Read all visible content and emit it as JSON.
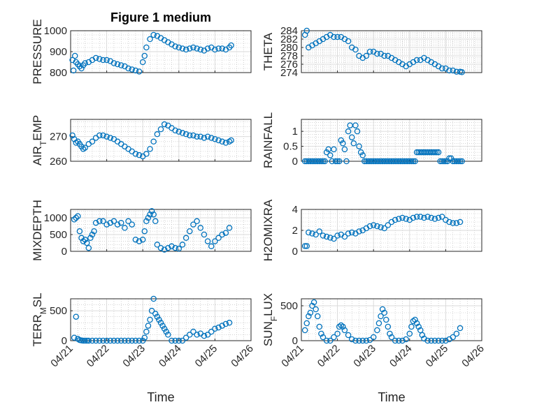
{
  "figure": {
    "background": "#ffffff",
    "marker_color": "#0072BD",
    "axis_color": "#262626",
    "grid_color": "#b8b8b8"
  },
  "chart_data": [
    {
      "id": "pressure",
      "type": "scatter",
      "title": "Figure 1 medium",
      "ylabel": "PRESSURE",
      "ylabel_sub": null,
      "xlabel": "",
      "xlim": [
        0,
        5
      ],
      "ylim": [
        800,
        1000
      ],
      "yticks": [
        800,
        900,
        1000
      ],
      "ytick_labels": [
        "800",
        "900",
        "1000"
      ],
      "xticks": [
        0,
        1,
        2,
        3,
        4,
        5
      ],
      "xtick_labels": [],
      "grid": "major+minor",
      "x": [
        0.05,
        0.08,
        0.12,
        0.15,
        0.2,
        0.25,
        0.3,
        0.35,
        0.4,
        0.5,
        0.6,
        0.7,
        0.8,
        0.9,
        1.0,
        1.1,
        1.2,
        1.3,
        1.4,
        1.5,
        1.6,
        1.7,
        1.8,
        1.9,
        2.0,
        2.05,
        2.1,
        2.2,
        2.3,
        2.4,
        2.5,
        2.6,
        2.7,
        2.8,
        2.9,
        3.0,
        3.1,
        3.2,
        3.3,
        3.4,
        3.5,
        3.6,
        3.7,
        3.8,
        3.9,
        4.0,
        4.1,
        4.2,
        4.3,
        4.4,
        4.45
      ],
      "y": [
        860,
        810,
        880,
        850,
        840,
        830,
        820,
        835,
        845,
        850,
        860,
        870,
        865,
        860,
        860,
        855,
        845,
        840,
        835,
        830,
        820,
        815,
        810,
        805,
        850,
        880,
        920,
        960,
        980,
        975,
        965,
        955,
        945,
        935,
        925,
        920,
        915,
        910,
        915,
        920,
        915,
        910,
        905,
        915,
        920,
        910,
        915,
        915,
        910,
        920,
        930
      ]
    },
    {
      "id": "theta",
      "type": "scatter",
      "title": "",
      "ylabel": "THETA",
      "ylabel_sub": null,
      "xlabel": "",
      "xlim": [
        0,
        5
      ],
      "ylim": [
        274,
        284
      ],
      "yticks": [
        274,
        276,
        278,
        280,
        282,
        284
      ],
      "ytick_labels": [
        "274",
        "276",
        "278",
        "280",
        "282",
        "284"
      ],
      "xticks": [
        0,
        1,
        2,
        3,
        4,
        5
      ],
      "xtick_labels": [],
      "grid": "major+minor",
      "x": [
        0.1,
        0.15,
        0.2,
        0.3,
        0.4,
        0.5,
        0.6,
        0.7,
        0.8,
        0.9,
        1.0,
        1.1,
        1.2,
        1.3,
        1.4,
        1.5,
        1.6,
        1.7,
        1.8,
        1.9,
        2.0,
        2.1,
        2.2,
        2.3,
        2.4,
        2.5,
        2.6,
        2.7,
        2.8,
        2.9,
        3.0,
        3.1,
        3.2,
        3.3,
        3.4,
        3.5,
        3.6,
        3.7,
        3.8,
        3.9,
        4.0,
        4.1,
        4.2,
        4.3,
        4.4,
        4.45
      ],
      "y": [
        283,
        284,
        280,
        280.5,
        281,
        281.5,
        282,
        282.5,
        283,
        282.5,
        282.5,
        282.5,
        282,
        281.5,
        280,
        279.5,
        278,
        277.5,
        278,
        279,
        279,
        278.5,
        278.5,
        278,
        278,
        277.5,
        277,
        276.5,
        276,
        275.5,
        276,
        276.5,
        277,
        277,
        277.5,
        277,
        276.5,
        276,
        275.5,
        275,
        275,
        274.5,
        274.5,
        274.2,
        274.2,
        274.1
      ]
    },
    {
      "id": "air-temp",
      "type": "scatter",
      "title": "",
      "ylabel": "AIR",
      "ylabel_sub": "T",
      "ylabel_rest": "EMP",
      "xlabel": "",
      "xlim": [
        0,
        5
      ],
      "ylim": [
        260,
        277
      ],
      "yticks": [
        260,
        270
      ],
      "ytick_labels": [
        "260",
        "270"
      ],
      "xticks": [
        0,
        1,
        2,
        3,
        4,
        5
      ],
      "xtick_labels": [],
      "grid": "major+minor",
      "x": [
        0.05,
        0.1,
        0.15,
        0.2,
        0.25,
        0.3,
        0.35,
        0.4,
        0.5,
        0.6,
        0.7,
        0.8,
        0.9,
        1.0,
        1.1,
        1.2,
        1.3,
        1.4,
        1.5,
        1.6,
        1.7,
        1.8,
        1.9,
        2.0,
        2.1,
        2.2,
        2.3,
        2.4,
        2.5,
        2.6,
        2.7,
        2.8,
        2.9,
        3.0,
        3.1,
        3.2,
        3.3,
        3.4,
        3.5,
        3.6,
        3.7,
        3.8,
        3.9,
        4.0,
        4.1,
        4.2,
        4.3,
        4.4,
        4.45
      ],
      "y": [
        270.5,
        269,
        267.5,
        268,
        267,
        266,
        265,
        265.5,
        267,
        268,
        269.5,
        270.5,
        270.5,
        270,
        269.5,
        269,
        268,
        267,
        266,
        265,
        264,
        263,
        262.5,
        262,
        263,
        265,
        268,
        271,
        273,
        275,
        274.5,
        273.5,
        272.5,
        272,
        271.5,
        271,
        270.5,
        270.5,
        270,
        270,
        269.5,
        270,
        269.5,
        269,
        268.5,
        268,
        267.5,
        268,
        268.5
      ]
    },
    {
      "id": "rainfall",
      "type": "scatter",
      "title": "",
      "ylabel": "RAINFALL",
      "ylabel_sub": null,
      "xlabel": "",
      "xlim": [
        0,
        5
      ],
      "ylim": [
        0,
        1.4
      ],
      "yticks": [
        0,
        0.5,
        1
      ],
      "ytick_labels": [
        "0",
        "0.5",
        "1"
      ],
      "xticks": [
        0,
        1,
        2,
        3,
        4,
        5
      ],
      "xtick_labels": [],
      "grid": "major+minor",
      "x": [
        0.1,
        0.15,
        0.2,
        0.25,
        0.3,
        0.35,
        0.4,
        0.45,
        0.5,
        0.55,
        0.6,
        0.65,
        0.7,
        0.75,
        0.8,
        0.85,
        0.9,
        0.95,
        1.0,
        1.05,
        1.1,
        1.15,
        1.2,
        1.25,
        1.3,
        1.35,
        1.4,
        1.45,
        1.5,
        1.55,
        1.6,
        1.65,
        1.7,
        1.75,
        1.8,
        1.85,
        1.9,
        1.95,
        2.0,
        2.05,
        2.1,
        2.15,
        2.2,
        2.25,
        2.3,
        2.35,
        2.4,
        2.45,
        2.5,
        2.55,
        2.6,
        2.65,
        2.7,
        2.75,
        2.8,
        2.85,
        2.9,
        2.95,
        3.0,
        3.05,
        3.1,
        3.15,
        3.2,
        3.25,
        3.3,
        3.35,
        3.4,
        3.45,
        3.5,
        3.55,
        3.6,
        3.65,
        3.7,
        3.75,
        3.8,
        3.85,
        3.9,
        3.95,
        4.0,
        4.05,
        4.1,
        4.15,
        4.2,
        4.25,
        4.3,
        4.35,
        4.4,
        4.45
      ],
      "y": [
        0,
        0,
        0,
        0,
        0,
        0,
        0,
        0,
        0,
        0,
        0,
        0,
        0.3,
        0.4,
        0.2,
        0,
        0.4,
        0,
        0,
        0,
        0.7,
        0.6,
        0.4,
        0,
        1.0,
        1.2,
        0.8,
        0.6,
        1.2,
        1.0,
        0.5,
        0.3,
        0.2,
        0,
        0,
        0,
        0,
        0,
        0,
        0,
        0,
        0,
        0,
        0,
        0,
        0,
        0,
        0,
        0,
        0,
        0,
        0,
        0,
        0,
        0,
        0,
        0,
        0,
        0,
        0,
        0,
        0,
        0.3,
        0.3,
        0.3,
        0.3,
        0.3,
        0.3,
        0.3,
        0.3,
        0.3,
        0.3,
        0.3,
        0.3,
        0.3,
        0,
        0,
        0,
        0,
        0,
        0.1,
        0.1,
        0,
        0,
        0,
        0,
        0,
        0
      ]
    },
    {
      "id": "mixdepth",
      "type": "scatter",
      "title": "",
      "ylabel": "MIXDEPTH",
      "ylabel_sub": null,
      "xlabel": "",
      "xlim": [
        0,
        5
      ],
      "ylim": [
        0,
        1250
      ],
      "yticks": [
        0,
        500,
        1000
      ],
      "ytick_labels": [
        "0",
        "500",
        "1000"
      ],
      "xticks": [
        0,
        1,
        2,
        3,
        4,
        5
      ],
      "xtick_labels": [],
      "grid": "major+minor",
      "x": [
        0.1,
        0.15,
        0.2,
        0.25,
        0.3,
        0.35,
        0.4,
        0.45,
        0.5,
        0.55,
        0.6,
        0.65,
        0.7,
        0.8,
        0.9,
        1.0,
        1.1,
        1.2,
        1.3,
        1.4,
        1.5,
        1.6,
        1.7,
        1.8,
        1.9,
        2.0,
        2.05,
        2.1,
        2.15,
        2.2,
        2.25,
        2.3,
        2.35,
        2.4,
        2.5,
        2.6,
        2.7,
        2.8,
        2.9,
        3.0,
        3.1,
        3.2,
        3.3,
        3.4,
        3.5,
        3.6,
        3.7,
        3.8,
        3.9,
        4.0,
        4.1,
        4.2,
        4.3,
        4.4
      ],
      "y": [
        950,
        1000,
        1050,
        600,
        400,
        300,
        350,
        250,
        100,
        400,
        500,
        600,
        850,
        900,
        900,
        800,
        850,
        900,
        800,
        850,
        700,
        900,
        800,
        350,
        300,
        350,
        600,
        900,
        1000,
        1100,
        1200,
        1100,
        900,
        200,
        100,
        50,
        100,
        150,
        100,
        80,
        200,
        400,
        600,
        800,
        900,
        700,
        500,
        300,
        150,
        300,
        400,
        500,
        550,
        700
      ]
    },
    {
      "id": "h2omixra",
      "type": "scatter",
      "title": "",
      "ylabel": "H2OMIXRA",
      "ylabel_sub": null,
      "xlabel": "",
      "xlim": [
        0,
        5
      ],
      "ylim": [
        0,
        4
      ],
      "yticks": [
        0,
        2,
        4
      ],
      "ytick_labels": [
        "0",
        "2",
        "4"
      ],
      "xticks": [
        0,
        1,
        2,
        3,
        4,
        5
      ],
      "xtick_labels": [],
      "grid": "major+minor",
      "x": [
        0.1,
        0.15,
        0.2,
        0.3,
        0.4,
        0.5,
        0.6,
        0.7,
        0.8,
        0.9,
        1.0,
        1.1,
        1.2,
        1.3,
        1.4,
        1.5,
        1.6,
        1.7,
        1.8,
        1.9,
        2.0,
        2.1,
        2.2,
        2.3,
        2.4,
        2.5,
        2.6,
        2.7,
        2.8,
        2.9,
        3.0,
        3.1,
        3.2,
        3.3,
        3.4,
        3.5,
        3.6,
        3.7,
        3.8,
        3.9,
        4.0,
        4.1,
        4.2,
        4.3,
        4.4
      ],
      "y": [
        0.5,
        0.5,
        1.8,
        1.7,
        1.6,
        1.9,
        1.5,
        1.4,
        1.3,
        1.2,
        1.5,
        1.6,
        1.4,
        1.7,
        1.8,
        1.7,
        1.9,
        2.0,
        2.2,
        2.4,
        2.5,
        2.4,
        2.3,
        2.2,
        2.5,
        2.8,
        3.0,
        3.1,
        3.2,
        3.1,
        3.0,
        3.2,
        3.3,
        3.3,
        3.2,
        3.3,
        3.2,
        3.1,
        3.2,
        3.3,
        3.0,
        2.8,
        2.7,
        2.7,
        2.8
      ]
    },
    {
      "id": "terr-msl",
      "type": "scatter",
      "title": "",
      "ylabel": "TERR",
      "ylabel_sub": "M",
      "ylabel_rest": "SL",
      "xlabel": "Time",
      "xlim": [
        0,
        5
      ],
      "ylim": [
        0,
        700
      ],
      "yticks": [
        0,
        500
      ],
      "ytick_labels": [
        "0",
        "500"
      ],
      "xticks": [
        0,
        1,
        2,
        3,
        4,
        5
      ],
      "xtick_labels": [
        "04/21",
        "04/22",
        "04/23",
        "04/24",
        "04/25",
        "04/26"
      ],
      "grid": "major+minor",
      "x": [
        0.1,
        0.15,
        0.2,
        0.25,
        0.3,
        0.35,
        0.4,
        0.45,
        0.5,
        0.6,
        0.7,
        0.8,
        0.9,
        1.0,
        1.1,
        1.2,
        1.3,
        1.4,
        1.5,
        1.6,
        1.7,
        1.8,
        1.9,
        2.0,
        2.05,
        2.1,
        2.15,
        2.2,
        2.25,
        2.3,
        2.35,
        2.4,
        2.45,
        2.5,
        2.55,
        2.6,
        2.65,
        2.7,
        2.8,
        2.9,
        3.0,
        3.1,
        3.2,
        3.3,
        3.4,
        3.5,
        3.6,
        3.7,
        3.8,
        3.9,
        4.0,
        4.1,
        4.2,
        4.3,
        4.4
      ],
      "y": [
        50,
        400,
        30,
        10,
        5,
        0,
        0,
        0,
        0,
        0,
        0,
        0,
        0,
        0,
        0,
        0,
        0,
        0,
        0,
        0,
        0,
        0,
        0,
        0,
        50,
        150,
        250,
        350,
        500,
        700,
        450,
        400,
        350,
        300,
        250,
        200,
        150,
        100,
        0,
        0,
        0,
        0,
        50,
        100,
        150,
        100,
        120,
        80,
        100,
        150,
        200,
        220,
        250,
        280,
        300
      ]
    },
    {
      "id": "sun-flux",
      "type": "scatter",
      "title": "",
      "ylabel": "SUN",
      "ylabel_sub": "F",
      "ylabel_rest": "LUX",
      "xlabel": "Time",
      "xlim": [
        0,
        5
      ],
      "ylim": [
        0,
        600
      ],
      "yticks": [
        0,
        500
      ],
      "ytick_labels": [
        "0",
        "500"
      ],
      "xticks": [
        0,
        1,
        2,
        3,
        4,
        5
      ],
      "xtick_labels": [
        "04/21",
        "04/22",
        "04/23",
        "04/24",
        "04/25",
        "04/26"
      ],
      "grid": "major+minor",
      "x": [
        0.1,
        0.15,
        0.2,
        0.25,
        0.3,
        0.35,
        0.4,
        0.45,
        0.5,
        0.55,
        0.6,
        0.7,
        0.8,
        0.9,
        1.0,
        1.05,
        1.1,
        1.15,
        1.2,
        1.3,
        1.4,
        1.5,
        1.6,
        1.7,
        1.8,
        1.9,
        2.0,
        2.1,
        2.15,
        2.2,
        2.25,
        2.3,
        2.35,
        2.4,
        2.45,
        2.5,
        2.6,
        2.7,
        2.8,
        2.9,
        3.0,
        3.05,
        3.1,
        3.15,
        3.2,
        3.25,
        3.3,
        3.35,
        3.4,
        3.5,
        3.6,
        3.7,
        3.8,
        3.9,
        4.0,
        4.1,
        4.2,
        4.3,
        4.4
      ],
      "y": [
        150,
        250,
        350,
        400,
        500,
        550,
        450,
        350,
        200,
        100,
        50,
        0,
        0,
        50,
        100,
        200,
        220,
        200,
        150,
        80,
        20,
        0,
        0,
        0,
        0,
        10,
        50,
        150,
        250,
        350,
        450,
        400,
        300,
        200,
        100,
        50,
        0,
        0,
        0,
        20,
        100,
        200,
        280,
        300,
        250,
        200,
        150,
        80,
        30,
        0,
        0,
        0,
        0,
        0,
        0,
        20,
        50,
        100,
        180
      ]
    }
  ]
}
